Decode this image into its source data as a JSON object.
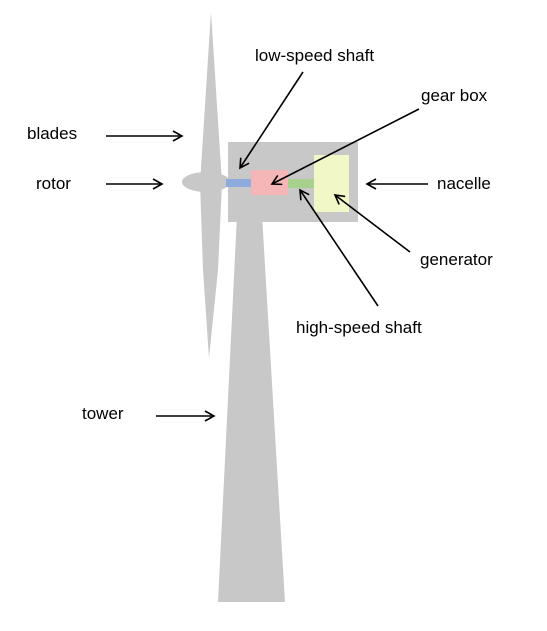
{
  "labels": {
    "low_speed_shaft": "low-speed shaft",
    "gear_box": "gear box",
    "blades": "blades",
    "rotor": "rotor",
    "nacelle": "nacelle",
    "generator": "generator",
    "high_speed_shaft": "high-speed shaft",
    "tower": "tower"
  },
  "colors": {
    "structure": "#c8c8c8",
    "low_speed_shaft": "#8faadc",
    "gear_box": "#f4b6b6",
    "high_speed_shaft": "#a9d18e",
    "generator": "#f2f7c8",
    "arrow": "#000000"
  }
}
